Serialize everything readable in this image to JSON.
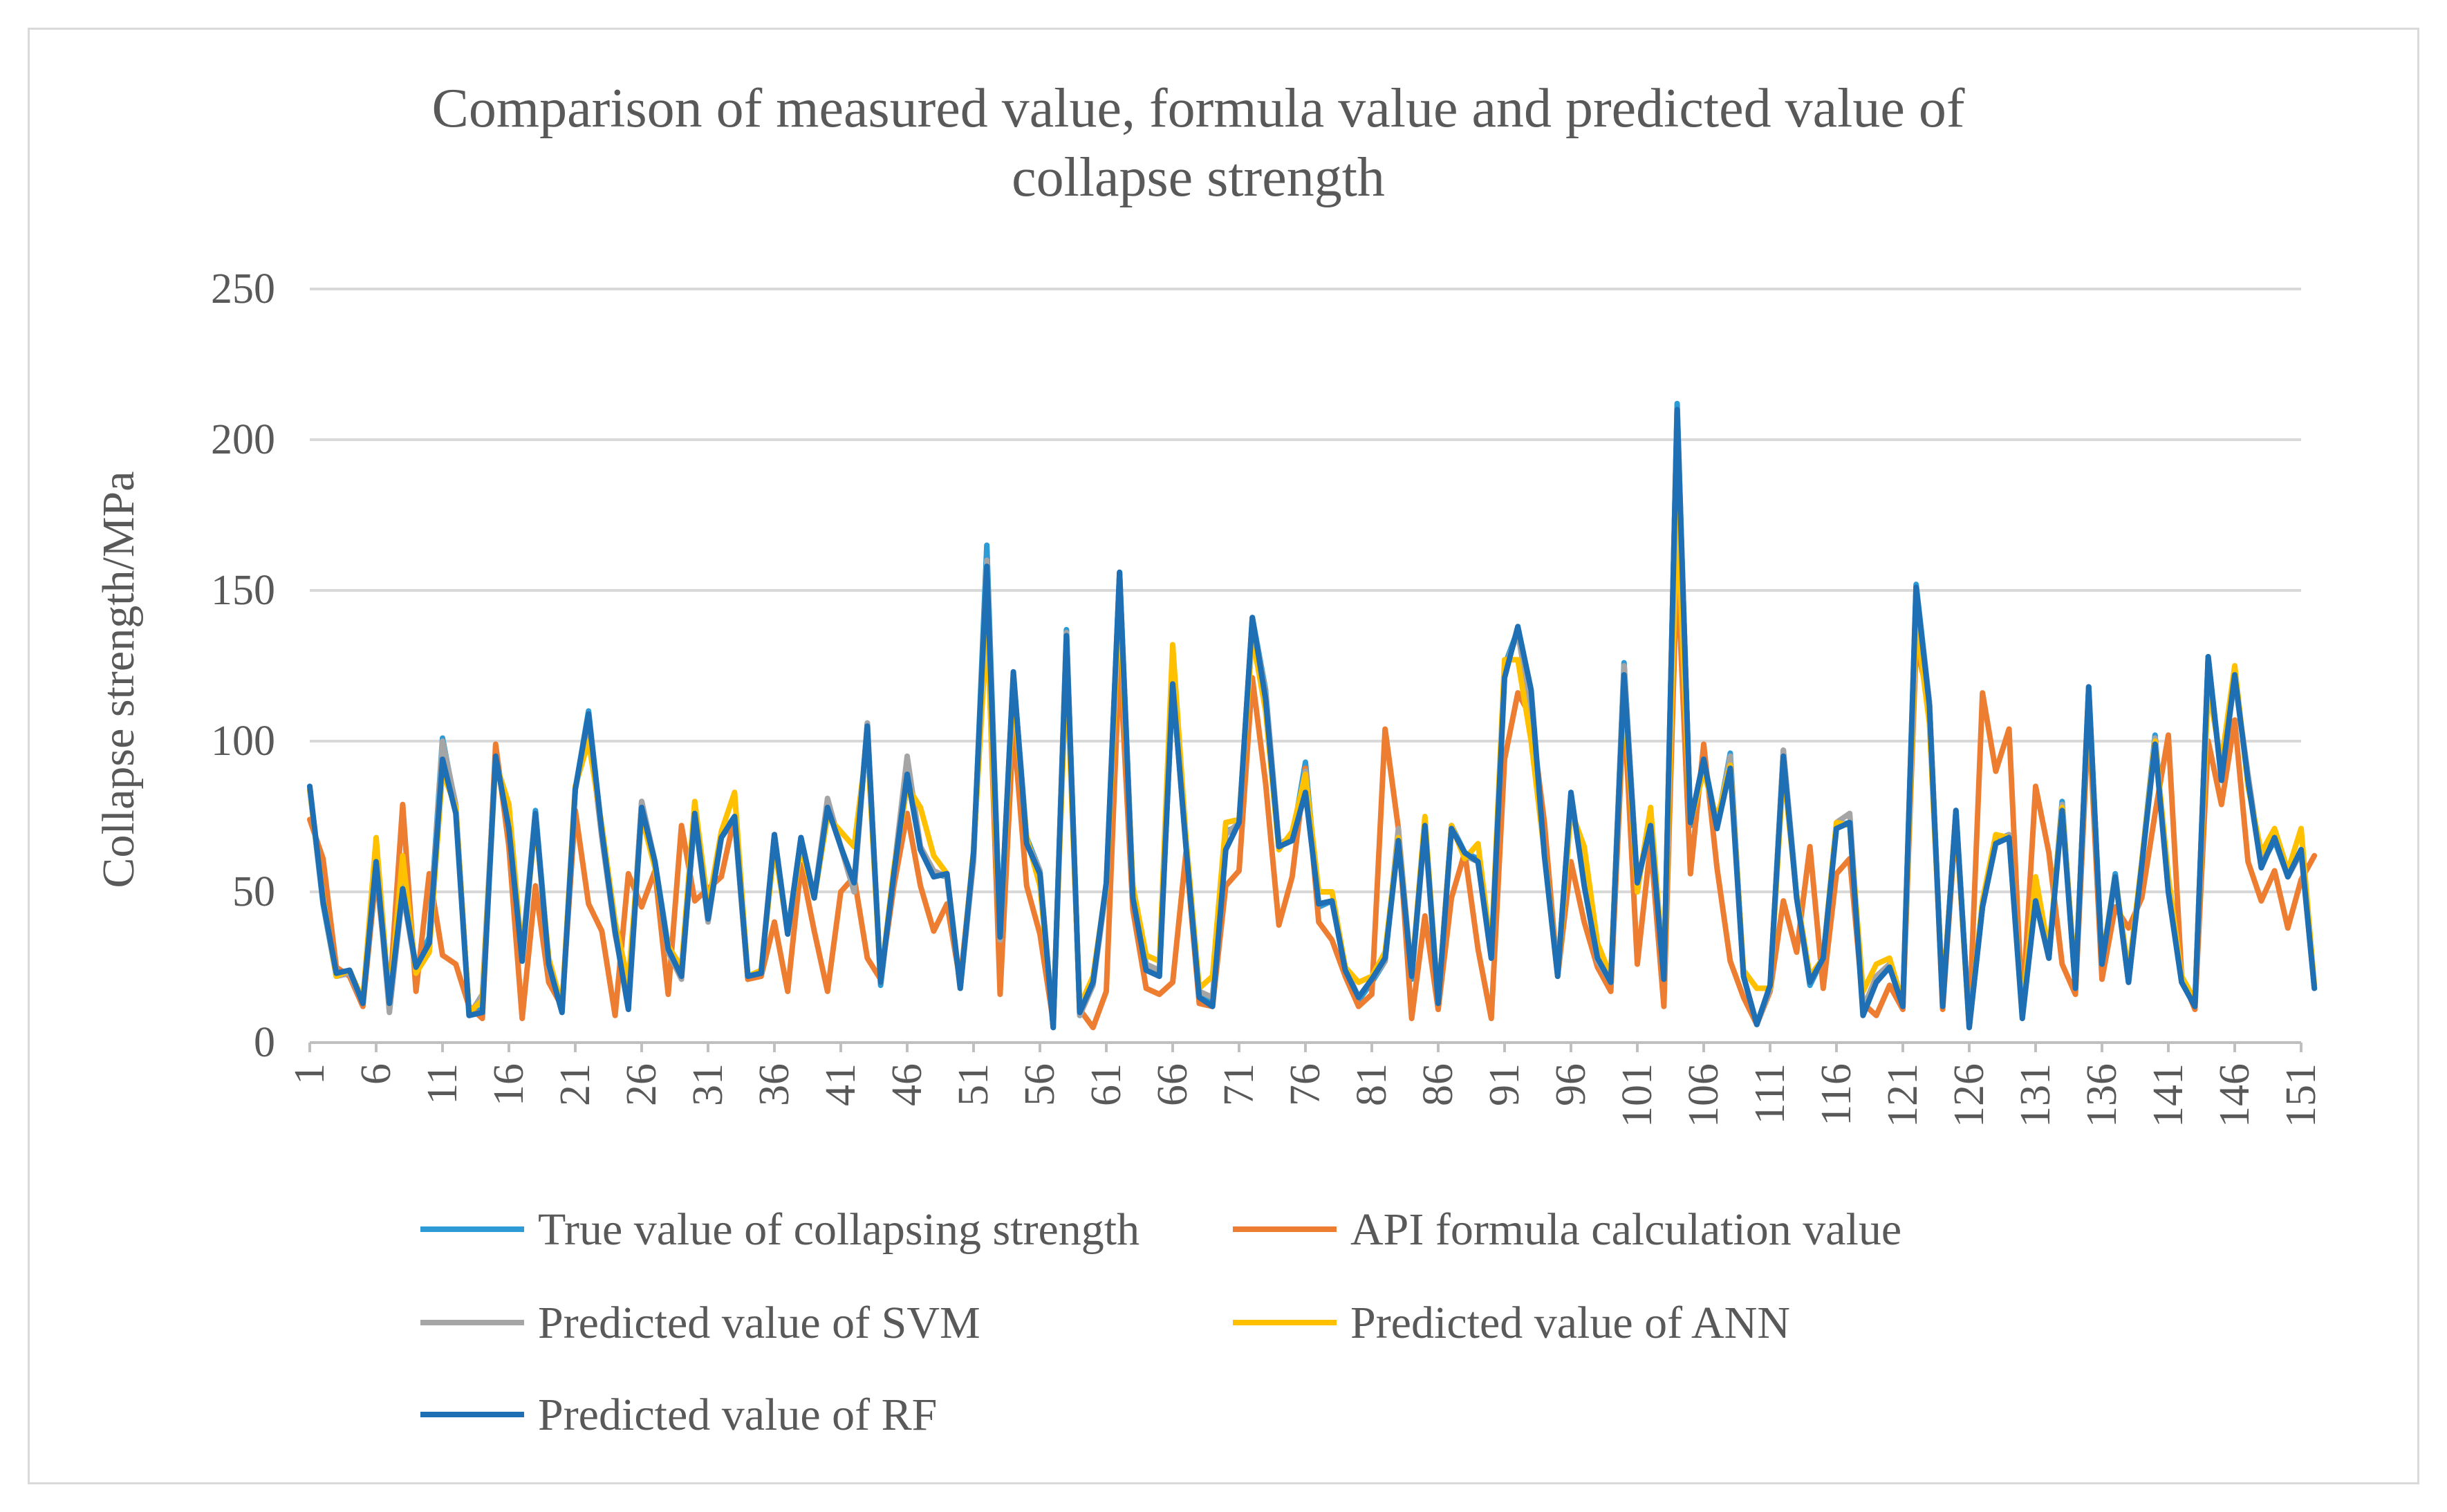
{
  "chart_data": {
    "type": "line",
    "title": "Comparison of measured value, formula value and predicted value of collapse strength",
    "title_lines": [
      "Comparison of measured value, formula value and predicted value of",
      "collapse strength"
    ],
    "ylabel": "Collapse strength/MPa",
    "xlabel": "",
    "ylim": [
      0,
      250
    ],
    "yticks": [
      "0",
      "50",
      "100",
      "150",
      "200",
      "250"
    ],
    "xlim": [
      1,
      151
    ],
    "xticks": [
      "1",
      "6",
      "11",
      "16",
      "21",
      "26",
      "31",
      "36",
      "41",
      "46",
      "51",
      "56",
      "61",
      "66",
      "71",
      "76",
      "81",
      "86",
      "91",
      "96",
      "101",
      "106",
      "111",
      "116",
      "121",
      "126",
      "131",
      "136",
      "141",
      "146",
      "151"
    ],
    "grid": "horizontal",
    "legend_position": "bottom",
    "series": [
      {
        "name": "True value of collapsing strength",
        "color": "#2e9bd6",
        "values": [
          84,
          46,
          22,
          23,
          14,
          61,
          13,
          52,
          25,
          35,
          101,
          78,
          10,
          11,
          97,
          70,
          29,
          77,
          27,
          11,
          84,
          110,
          70,
          38,
          12,
          80,
          60,
          32,
          22,
          75,
          41,
          68,
          74,
          21,
          23,
          69,
          36,
          68,
          48,
          80,
          65,
          51,
          106,
          19,
          56,
          93,
          64,
          56,
          55,
          18,
          61,
          165,
          35,
          122,
          68,
          57,
          5,
          137,
          9,
          20,
          52,
          156,
          51,
          26,
          23,
          119,
          66,
          16,
          13,
          70,
          72,
          141,
          117,
          66,
          67,
          93,
          45,
          47,
          25,
          14,
          20,
          27,
          70,
          21,
          72,
          13,
          72,
          63,
          61,
          28,
          125,
          137,
          110,
          64,
          23,
          82,
          54,
          28,
          20,
          126,
          52,
          73,
          20,
          212,
          72,
          94,
          72,
          96,
          22,
          6,
          18,
          97,
          49,
          19,
          28,
          72,
          73,
          10,
          21,
          26,
          13,
          152,
          113,
          13,
          77,
          5,
          45,
          67,
          69,
          9,
          48,
          28,
          80,
          18,
          118,
          26,
          56,
          20,
          60,
          102,
          50,
          20,
          13,
          128,
          88,
          121,
          88,
          59,
          67,
          55,
          64,
          18
        ]
      },
      {
        "name": "API formula calculation value",
        "color": "#ed7d31",
        "values": [
          74,
          61,
          25,
          22,
          12,
          56,
          15,
          79,
          17,
          56,
          29,
          26,
          12,
          8,
          99,
          65,
          8,
          52,
          20,
          12,
          77,
          46,
          37,
          9,
          56,
          45,
          57,
          16,
          72,
          47,
          51,
          55,
          75,
          21,
          22,
          40,
          17,
          59,
          37,
          17,
          50,
          55,
          28,
          21,
          52,
          76,
          52,
          37,
          46,
          20,
          63,
          145,
          16,
          105,
          52,
          36,
          7,
          130,
          11,
          5,
          17,
          128,
          44,
          18,
          16,
          20,
          63,
          13,
          12,
          52,
          57,
          121,
          86,
          39,
          55,
          91,
          40,
          34,
          22,
          12,
          16,
          104,
          71,
          8,
          42,
          11,
          48,
          63,
          31,
          8,
          94,
          116,
          108,
          73,
          22,
          60,
          40,
          25,
          17,
          112,
          26,
          66,
          12,
          160,
          56,
          99,
          58,
          27,
          15,
          6,
          17,
          47,
          30,
          65,
          18,
          56,
          61,
          13,
          9,
          19,
          11,
          132,
          113,
          11,
          74,
          6,
          116,
          90,
          104,
          10,
          85,
          63,
          26,
          16,
          109,
          21,
          45,
          38,
          48,
          76,
          102,
          22,
          11,
          100,
          79,
          107,
          60,
          47,
          57,
          38,
          54,
          62
        ]
      },
      {
        "name": "Predicted value of SVM",
        "color": "#a5a5a5",
        "values": [
          84,
          47,
          22,
          23,
          13,
          60,
          10,
          50,
          24,
          32,
          100,
          79,
          9,
          16,
          95,
          72,
          28,
          76,
          25,
          11,
          84,
          105,
          68,
          36,
          14,
          80,
          60,
          30,
          21,
          76,
          40,
          69,
          75,
          22,
          24,
          69,
          36,
          67,
          48,
          81,
          65,
          50,
          106,
          20,
          57,
          95,
          65,
          57,
          55,
          18,
          60,
          160,
          34,
          122,
          67,
          57,
          6,
          136,
          9,
          19,
          51,
          155,
          50,
          26,
          24,
          119,
          65,
          17,
          15,
          69,
          73,
          140,
          116,
          66,
          68,
          90,
          46,
          47,
          25,
          15,
          21,
          27,
          71,
          22,
          71,
          13,
          72,
          62,
          60,
          28,
          124,
          136,
          110,
          63,
          22,
          82,
          53,
          27,
          20,
          125,
          53,
          73,
          21,
          210,
          73,
          93,
          72,
          95,
          22,
          6,
          18,
          97,
          48,
          20,
          28,
          73,
          76,
          11,
          22,
          26,
          12,
          150,
          113,
          13,
          77,
          5,
          45,
          66,
          69,
          9,
          49,
          28,
          79,
          18,
          117,
          26,
          55,
          20,
          59,
          101,
          51,
          21,
          13,
          127,
          88,
          121,
          89,
          59,
          68,
          55,
          63,
          18
        ]
      },
      {
        "name": "Predicted value of ANN",
        "color": "#ffc000",
        "values": [
          84,
          48,
          22,
          24,
          14,
          68,
          13,
          62,
          23,
          30,
          90,
          78,
          10,
          14,
          93,
          79,
          28,
          74,
          28,
          12,
          85,
          100,
          72,
          40,
          20,
          75,
          58,
          32,
          25,
          80,
          45,
          70,
          83,
          22,
          24,
          65,
          37,
          65,
          48,
          75,
          70,
          65,
          100,
          20,
          58,
          85,
          78,
          62,
          56,
          18,
          64,
          138,
          36,
          117,
          68,
          52,
          7,
          125,
          12,
          22,
          52,
          148,
          52,
          29,
          27,
          132,
          68,
          18,
          22,
          73,
          74,
          135,
          110,
          64,
          70,
          89,
          50,
          50,
          25,
          20,
          22,
          30,
          68,
          22,
          75,
          13,
          72,
          61,
          66,
          30,
          127,
          127,
          100,
          63,
          22,
          77,
          65,
          33,
          22,
          118,
          50,
          78,
          22,
          175,
          73,
          90,
          74,
          92,
          24,
          18,
          18,
          91,
          49,
          22,
          28,
          73,
          72,
          17,
          26,
          28,
          13,
          140,
          106,
          15,
          75,
          5,
          47,
          69,
          68,
          10,
          55,
          30,
          78,
          20,
          115,
          27,
          55,
          23,
          60,
          100,
          55,
          22,
          14,
          118,
          93,
          125,
          85,
          63,
          71,
          57,
          71,
          19
        ]
      },
      {
        "name": "Predicted value of RF",
        "color": "#1f6fb5",
        "values": [
          85,
          47,
          23,
          24,
          13,
          60,
          13,
          51,
          25,
          33,
          94,
          76,
          9,
          10,
          95,
          71,
          27,
          76,
          26,
          10,
          84,
          109,
          70,
          37,
          11,
          78,
          60,
          31,
          22,
          76,
          41,
          68,
          75,
          22,
          23,
          69,
          36,
          68,
          48,
          78,
          65,
          53,
          105,
          20,
          56,
          89,
          64,
          55,
          56,
          18,
          63,
          158,
          35,
          123,
          66,
          56,
          5,
          135,
          10,
          20,
          53,
          156,
          48,
          24,
          22,
          119,
          65,
          15,
          12,
          64,
          73,
          141,
          114,
          65,
          67,
          83,
          46,
          47,
          24,
          15,
          21,
          28,
          67,
          22,
          72,
          13,
          71,
          63,
          60,
          28,
          121,
          138,
          117,
          62,
          22,
          83,
          52,
          28,
          20,
          122,
          53,
          72,
          21,
          210,
          73,
          94,
          71,
          91,
          22,
          6,
          19,
          95,
          48,
          20,
          28,
          71,
          73,
          9,
          20,
          25,
          12,
          151,
          112,
          12,
          77,
          5,
          45,
          66,
          68,
          8,
          47,
          28,
          77,
          18,
          118,
          26,
          55,
          20,
          59,
          99,
          50,
          20,
          12,
          128,
          87,
          122,
          87,
          58,
          68,
          55,
          64,
          18
        ]
      }
    ]
  }
}
